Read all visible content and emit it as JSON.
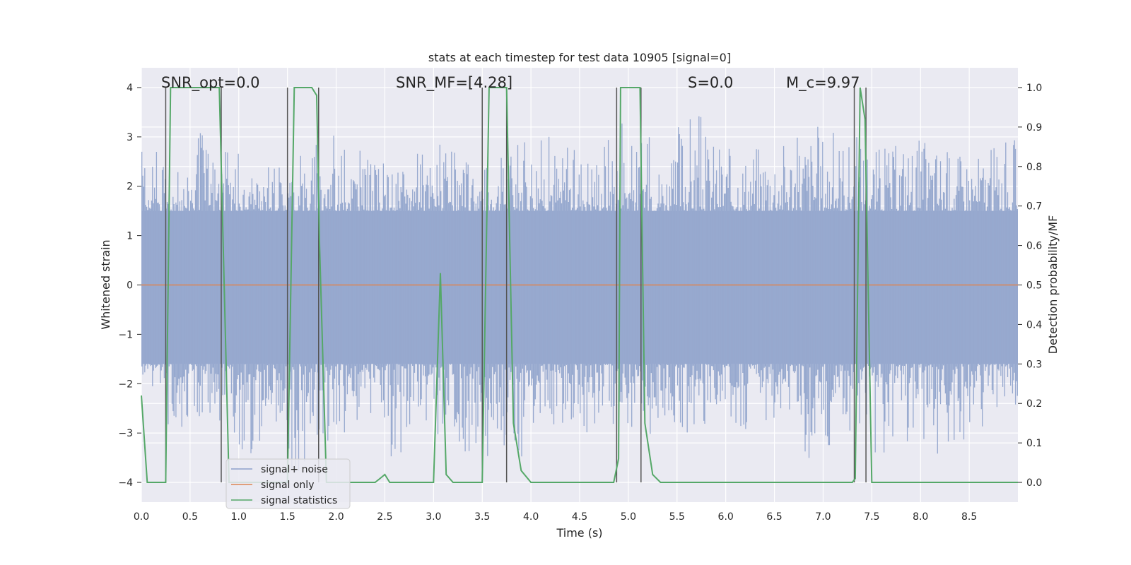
{
  "chart_data": {
    "type": "line",
    "title": "stats at each timestep for test data 10905 [signal=0]",
    "xlabel": "Time (s)",
    "ylabel": "Whitened strain",
    "ylabel_right": "Detection probability/MF",
    "xlim": [
      0.0,
      9.0
    ],
    "ylim": [
      -4.4,
      4.4
    ],
    "ylim_right": [
      -0.05,
      1.05
    ],
    "x_ticks": [
      0.0,
      0.5,
      1.0,
      1.5,
      2.0,
      2.5,
      3.0,
      3.5,
      4.0,
      4.5,
      5.0,
      5.5,
      6.0,
      6.5,
      7.0,
      7.5,
      8.0,
      8.5
    ],
    "x_tick_labels": [
      "0.0",
      "0.5",
      "1.0",
      "1.5",
      "2.0",
      "2.5",
      "3.0",
      "3.5",
      "4.0",
      "4.5",
      "5.0",
      "5.5",
      "6.0",
      "6.5",
      "7.0",
      "7.5",
      "8.0",
      "8.5"
    ],
    "y_ticks": [
      4,
      3,
      2,
      1,
      0,
      -1,
      -2,
      -3,
      -4
    ],
    "y_tick_labels": [
      "4",
      "3",
      "2",
      "1",
      "0",
      "−1",
      "−2",
      "−3",
      "−4"
    ],
    "y_right_ticks": [
      1.0,
      0.9,
      0.8,
      0.7,
      0.6,
      0.5,
      0.4,
      0.3,
      0.2,
      0.1,
      0.0
    ],
    "y_right_tick_labels": [
      "1.0",
      "0.9",
      "0.8",
      "0.7",
      "0.6",
      "0.5",
      "0.4",
      "0.3",
      "0.2",
      "0.1",
      "0.0"
    ],
    "annotations": [
      {
        "name": "snr-opt-annotation",
        "text": "SNR_opt=0.0",
        "x": 0.2,
        "y": 4.1
      },
      {
        "name": "snr-mf-annotation",
        "text": "SNR_MF=[4.28]",
        "x": 2.6,
        "y": 4.1
      },
      {
        "name": "s-annotation",
        "text": "S=0.0",
        "x": 5.6,
        "y": 4.1
      },
      {
        "name": "mc-annotation",
        "text": "M_c=9.97",
        "x": 6.6,
        "y": 4.1
      }
    ],
    "legend": {
      "location": "lower-left",
      "entries": [
        {
          "label": "signal+ noise",
          "color": "#8da0cb"
        },
        {
          "label": "signal only",
          "color": "#dd8452"
        },
        {
          "label": "signal statistics",
          "color": "#55a868"
        }
      ]
    },
    "series": [
      {
        "name": "signal+ noise",
        "axis": "left",
        "description": "whitened strain noise band",
        "envelope_upper": [
          2.7,
          2.4,
          3.3,
          2.9,
          2.2,
          2.4,
          2.7,
          3.1,
          2.9,
          2.6,
          2.5,
          2.8,
          2.9,
          2.7,
          2.6,
          3.0,
          3.1,
          2.8,
          2.9,
          3.3,
          3.0,
          2.6,
          3.6,
          3.1,
          2.8,
          3.0,
          3.1,
          3.3,
          3.2,
          3.1,
          2.9,
          3.1,
          3.0,
          2.8,
          2.8,
          3.0
        ],
        "envelope_lower": [
          -2.3,
          -2.9,
          -2.7,
          -3.1,
          -3.5,
          -2.9,
          -3.9,
          -3.3,
          -3.0,
          -2.9,
          -3.7,
          -3.2,
          -3.1,
          -3.4,
          -3.5,
          -3.9,
          -3.0,
          -2.8,
          -3.0,
          -2.9,
          -3.1,
          -2.8,
          -3.4,
          -3.0,
          -3.0,
          -2.8,
          -2.9,
          -3.6,
          -3.3,
          -3.0,
          -3.6,
          -3.2,
          -3.5,
          -3.3,
          -2.9,
          -2.5
        ],
        "band_upper": 1.5,
        "band_lower": -1.6
      },
      {
        "name": "signal only",
        "axis": "left",
        "x": [
          0.0,
          9.0
        ],
        "y": [
          0.0,
          0.0
        ]
      },
      {
        "name": "signal statistics",
        "axis": "right",
        "x": [
          0.0,
          0.06,
          0.25,
          0.3,
          0.8,
          0.82,
          0.9,
          1.5,
          1.57,
          1.75,
          1.8,
          1.83,
          1.9,
          2.4,
          2.45,
          2.5,
          2.55,
          3.0,
          3.07,
          3.13,
          3.2,
          3.5,
          3.57,
          3.75,
          3.82,
          3.9,
          4.0,
          4.85,
          4.9,
          4.92,
          5.12,
          5.17,
          5.25,
          5.33,
          5.4,
          7.3,
          7.33,
          7.38,
          7.43,
          7.5,
          9.0
        ],
        "y": [
          0.22,
          0.0,
          0.0,
          1.0,
          1.0,
          0.8,
          0.0,
          0.0,
          1.0,
          1.0,
          0.98,
          0.6,
          0.0,
          0.0,
          0.01,
          0.02,
          0.0,
          0.0,
          0.53,
          0.02,
          0.0,
          0.0,
          1.0,
          1.0,
          0.15,
          0.03,
          0.0,
          0.0,
          0.06,
          1.0,
          1.0,
          0.15,
          0.02,
          0.0,
          0.0,
          0.0,
          0.01,
          1.0,
          0.92,
          0.0,
          0.0
        ]
      },
      {
        "name": "detection markers",
        "axis": "right",
        "x": [
          0.25,
          0.82,
          1.5,
          1.82,
          3.5,
          3.75,
          4.88,
          5.13,
          7.32,
          7.44
        ],
        "y_range": [
          0.0,
          1.0
        ]
      }
    ]
  }
}
